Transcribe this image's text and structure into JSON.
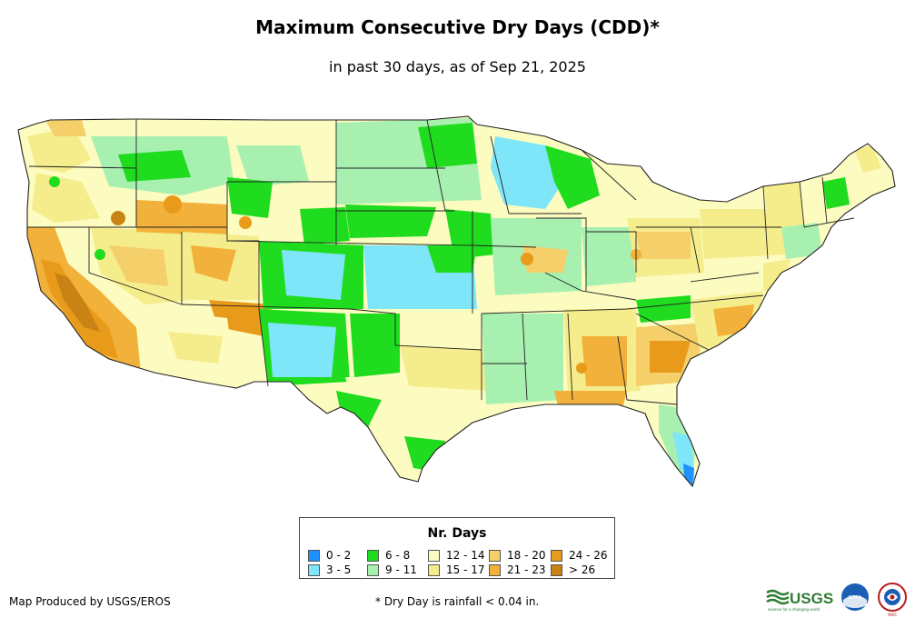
{
  "header": {
    "title": "Maximum Consecutive Dry Days (CDD)*",
    "subtitle": "in past 30 days, as of Sep 21, 2025"
  },
  "legend": {
    "title": "Nr. Days",
    "items": [
      {
        "label": "0 - 2",
        "color": "#1e90ff"
      },
      {
        "label": "3 - 5",
        "color": "#7fe5f8"
      },
      {
        "label": "6 - 8",
        "color": "#1fdc1f"
      },
      {
        "label": "9 - 11",
        "color": "#a8f0b0"
      },
      {
        "label": "12 - 14",
        "color": "#fdfcc0"
      },
      {
        "label": "15 - 17",
        "color": "#f5ec8c"
      },
      {
        "label": "18 - 20",
        "color": "#f5cf6a"
      },
      {
        "label": "21 - 23",
        "color": "#f1b13a"
      },
      {
        "label": "24 - 26",
        "color": "#e89a1a"
      },
      {
        "label": "> 26",
        "color": "#c98314"
      }
    ]
  },
  "footer": {
    "credit": "Map Produced by USGS/EROS",
    "footnote": "* Dry Day is rainfall < 0.04 in.",
    "logo_usgs": "USGS",
    "logo_usgs_tagline": "science for a changing world",
    "logo_noaa": "NOAA",
    "logo_nws": "NWS"
  }
}
